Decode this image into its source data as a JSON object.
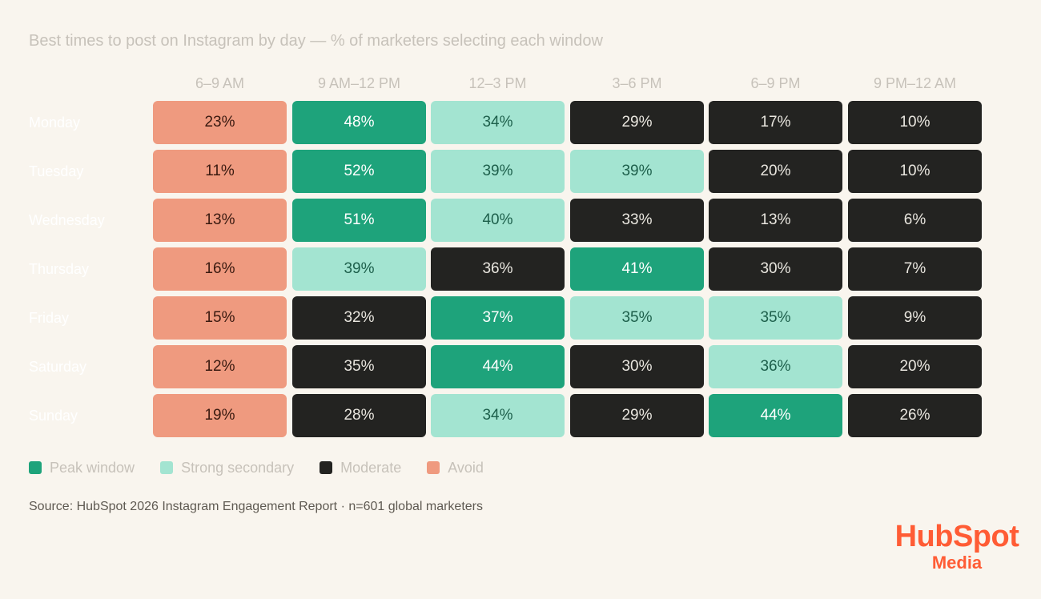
{
  "chart_data": {
    "type": "heatmap",
    "title": "Best times to post on Instagram by day — % of marketers selecting each window",
    "columns": [
      "6–9 AM",
      "9 AM–12 PM",
      "12–3 PM",
      "3–6 PM",
      "6–9 PM",
      "9 PM–12 AM"
    ],
    "rows": [
      "Monday",
      "Tuesday",
      "Wednesday",
      "Thursday",
      "Friday",
      "Saturday",
      "Sunday"
    ],
    "values": [
      [
        23,
        48,
        34,
        29,
        17,
        10
      ],
      [
        11,
        52,
        39,
        39,
        20,
        10
      ],
      [
        13,
        51,
        40,
        33,
        13,
        6
      ],
      [
        16,
        39,
        36,
        41,
        30,
        7
      ],
      [
        15,
        32,
        37,
        35,
        35,
        9
      ],
      [
        12,
        35,
        44,
        30,
        36,
        20
      ],
      [
        19,
        28,
        34,
        29,
        44,
        26
      ]
    ],
    "categories_grid": [
      [
        "avoid",
        "peak",
        "secondary",
        "moderate",
        "moderate",
        "moderate"
      ],
      [
        "avoid",
        "peak",
        "secondary",
        "secondary",
        "moderate",
        "moderate"
      ],
      [
        "avoid",
        "peak",
        "secondary",
        "moderate",
        "moderate",
        "moderate"
      ],
      [
        "avoid",
        "secondary",
        "moderate",
        "peak",
        "moderate",
        "moderate"
      ],
      [
        "avoid",
        "moderate",
        "peak",
        "secondary",
        "secondary",
        "moderate"
      ],
      [
        "avoid",
        "moderate",
        "peak",
        "moderate",
        "secondary",
        "moderate"
      ],
      [
        "avoid",
        "moderate",
        "secondary",
        "moderate",
        "peak",
        "moderate"
      ]
    ],
    "value_suffix": "%",
    "legend": [
      {
        "key": "peak",
        "label": "Peak window",
        "color": "#1ea37b",
        "text_color": "#ffffff"
      },
      {
        "key": "secondary",
        "label": "Strong secondary",
        "color": "#a3e4d1",
        "text_color": "#1d5f4b"
      },
      {
        "key": "moderate",
        "label": "Moderate",
        "color": "#232321",
        "text_color": "#e9e6df"
      },
      {
        "key": "avoid",
        "label": "Avoid",
        "color": "#ef9a7f",
        "text_color": "#3a1a10"
      }
    ],
    "legend_position": "bottom-left"
  },
  "source": "Source: HubSpot 2026 Instagram Engagement Report · n=601 global marketers",
  "logo": {
    "main": "HubSpot",
    "sub": "Media",
    "color": "#ff5c35"
  }
}
